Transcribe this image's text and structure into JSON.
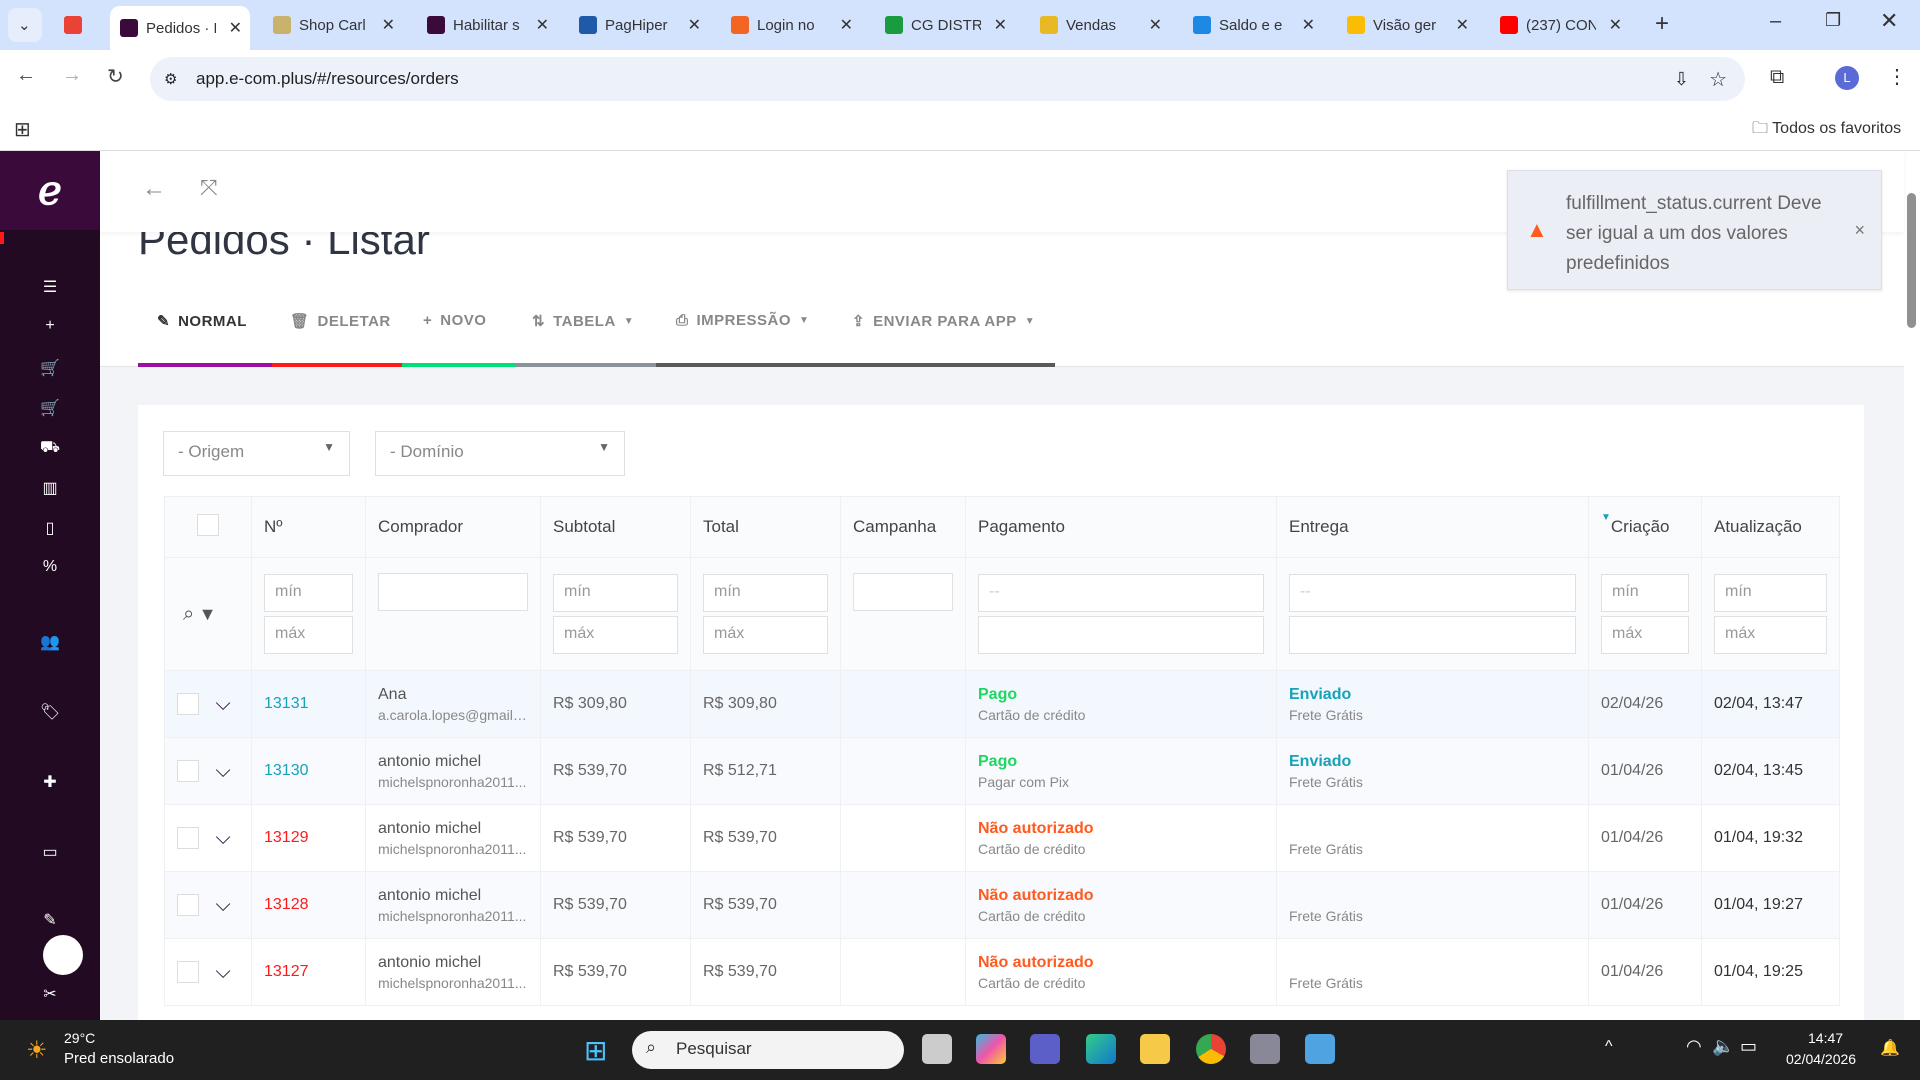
{
  "browser": {
    "tabs": [
      {
        "label": "",
        "icon": "gmail-icon",
        "color": "#ea4335"
      },
      {
        "label": "Pedidos · E",
        "icon": "ecom-icon",
        "color": "#3a0b3a",
        "active": true
      },
      {
        "label": "Shop Carl",
        "icon": "cg-icon",
        "color": "#c9b26b"
      },
      {
        "label": "Habilitar s",
        "icon": "ecom-icon",
        "color": "#3a0b3a"
      },
      {
        "label": "PagHiper",
        "icon": "paghiper-icon",
        "color": "#1e5aa8"
      },
      {
        "label": "Login no",
        "icon": "login-icon",
        "color": "#f26522"
      },
      {
        "label": "CG DISTR",
        "icon": "cg-distr-icon",
        "color": "#1a9c3e"
      },
      {
        "label": "Vendas",
        "icon": "vendas-icon",
        "color": "#e8b923"
      },
      {
        "label": "Saldo e e",
        "icon": "saldo-icon",
        "color": "#1e88e5"
      },
      {
        "label": "Visão ger",
        "icon": "google-ads-icon",
        "color": "#fbbc04"
      },
      {
        "label": "(237) CON",
        "icon": "youtube-icon",
        "color": "#ff0000"
      }
    ],
    "url": "app.e-com.plus/#/resources/orders",
    "bookmarks_label": "Todos os favoritos",
    "profile_initial": "L"
  },
  "page": {
    "title_main": "Pedidos",
    "title_sep": " · ",
    "title_sub": "Listar",
    "toolbar": [
      {
        "label": "NORMAL",
        "icon": "✎",
        "color": "#333"
      },
      {
        "label": "DELETAR",
        "icon": "🗑",
        "color": "#888"
      },
      {
        "label": "NOVO",
        "icon": "+",
        "color": "#888"
      },
      {
        "label": "TABELA",
        "icon": "⇅",
        "color": "#888",
        "dropdown": true
      },
      {
        "label": "IMPRESSÃO",
        "icon": "⎙",
        "color": "#888",
        "dropdown": true
      },
      {
        "label": "ENVIAR PARA APP",
        "icon": "⇪",
        "color": "#888",
        "dropdown": true
      }
    ],
    "tab_colors": [
      "#9b0fa0",
      "#ff1a1a",
      "#00e07a",
      "#8a929b",
      "#5a5a5a"
    ]
  },
  "filters": {
    "origem": "- Origem",
    "dominio": "- Domínio"
  },
  "table": {
    "headers": [
      "",
      "Nº",
      "Comprador",
      "Subtotal",
      "Total",
      "Campanha",
      "Pagamento",
      "Entrega",
      "Criação",
      "Atualização"
    ],
    "min_placeholder": "mín",
    "max_placeholder": "máx",
    "select_placeholder": "--",
    "rows": [
      {
        "num": "13131",
        "num_color": "#17a2b8",
        "name": "Ana",
        "email": "a.carola.lopes@gmail....",
        "subtotal": "R$ 309,80",
        "total": "R$ 309,80",
        "pay_status": "Pago",
        "pay_color": "#1ed760",
        "pay_method": "Cartão de crédito",
        "ship_status": "Enviado",
        "ship_method": "Frete Grátis",
        "created": "02/04/26",
        "updated": "02/04, 13:47"
      },
      {
        "num": "13130",
        "num_color": "#17a2b8",
        "name": "antonio michel",
        "email": "michelspnoronha2011...",
        "subtotal": "R$ 539,70",
        "total": "R$ 512,71",
        "pay_status": "Pago",
        "pay_color": "#1ed760",
        "pay_method": "Pagar com Pix",
        "ship_status": "Enviado",
        "ship_method": "Frete Grátis",
        "created": "01/04/26",
        "updated": "02/04, 13:45"
      },
      {
        "num": "13129",
        "num_color": "#ff1a1a",
        "name": "antonio michel",
        "email": "michelspnoronha2011...",
        "subtotal": "R$ 539,70",
        "total": "R$ 539,70",
        "pay_status": "Não autorizado",
        "pay_color": "#ff5a1f",
        "pay_method": "Cartão de crédito",
        "ship_status": "",
        "ship_method": "Frete Grátis",
        "created": "01/04/26",
        "updated": "01/04, 19:32"
      },
      {
        "num": "13128",
        "num_color": "#ff1a1a",
        "name": "antonio michel",
        "email": "michelspnoronha2011...",
        "subtotal": "R$ 539,70",
        "total": "R$ 539,70",
        "pay_status": "Não autorizado",
        "pay_color": "#ff5a1f",
        "pay_method": "Cartão de crédito",
        "ship_status": "",
        "ship_method": "Frete Grátis",
        "created": "01/04/26",
        "updated": "01/04, 19:27"
      },
      {
        "num": "13127",
        "num_color": "#ff1a1a",
        "name": "antonio michel",
        "email": "michelspnoronha2011...",
        "subtotal": "R$ 539,70",
        "total": "R$ 539,70",
        "pay_status": "Não autorizado",
        "pay_color": "#ff5a1f",
        "pay_method": "Cartão de crédito",
        "ship_status": "",
        "ship_method": "Frete Grátis",
        "created": "01/04/26",
        "updated": "01/04, 19:25"
      }
    ]
  },
  "toast": {
    "message": "fulfillment_status.current Deve ser igual a um dos valores predefinidos",
    "icon": "warning-icon",
    "color": "#ff5a1f"
  },
  "taskbar": {
    "temp": "29°C",
    "weather": "Pred ensolarado",
    "search": "Pesquisar",
    "time": "14:47",
    "date": "02/04/2026"
  }
}
